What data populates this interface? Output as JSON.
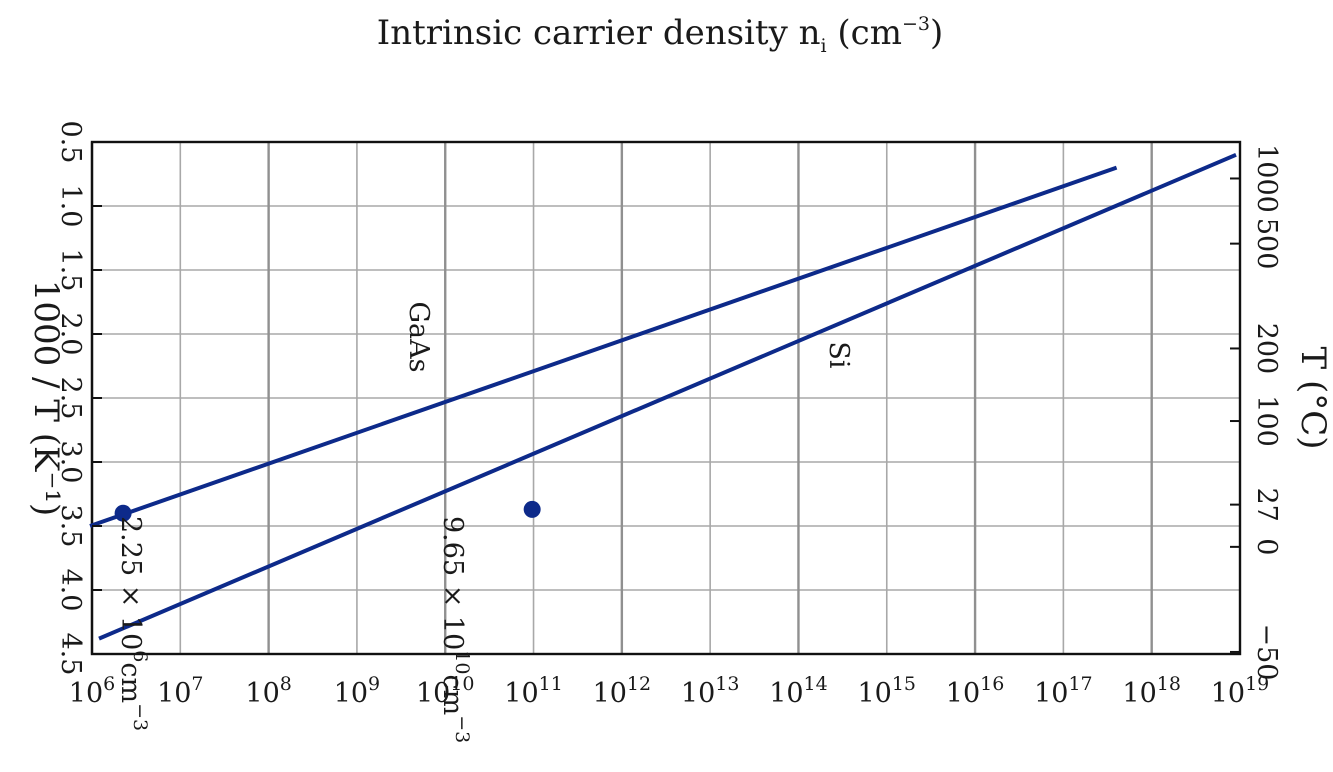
{
  "chart_data": {
    "type": "line",
    "title": "Intrinsic carrier density n_i (cm^-3)",
    "title_parts": {
      "text": "Intrinsic carrier density n",
      "sub": "i",
      "unit_open": " (cm",
      "unit_sup": "−3",
      "unit_close": ")"
    },
    "xlabel": "1000 / T (K⁻¹)",
    "ylabel": "Intrinsic carrier density n_i (cm^-3)",
    "secondary_axis_label": "T (°C)",
    "x_scale": "linear",
    "y_scale": "log",
    "xlim": [
      0.5,
      4.5
    ],
    "ylim": [
      1000000.0,
      1e+19
    ],
    "x_ticks": [
      "0.5",
      "1.0",
      "1.5",
      "2.0",
      "2.5",
      "3.0",
      "3.5",
      "4.0",
      "4.5"
    ],
    "x_tick_values": [
      0.5,
      1.0,
      1.5,
      2.0,
      2.5,
      3.0,
      3.5,
      4.0,
      4.5
    ],
    "y_tick_base": "10",
    "y_tick_exponents": [
      "6",
      "7",
      "8",
      "9",
      "10",
      "11",
      "12",
      "13",
      "14",
      "15",
      "16",
      "17",
      "18",
      "19"
    ],
    "temperature_ticks": [
      {
        "label": "1000",
        "x": 0.785
      },
      {
        "label": "500",
        "x": 1.294
      },
      {
        "label": "200",
        "x": 2.113
      },
      {
        "label": "100",
        "x": 2.68
      },
      {
        "label": "27",
        "x": 3.333
      },
      {
        "label": "0",
        "x": 3.663
      },
      {
        "label": "−50",
        "x": 4.484
      }
    ],
    "grid": true,
    "series": [
      {
        "name": "GaAs",
        "color": "#0d2a8a",
        "x": [
          0.7,
          3.5
        ],
        "y": [
          4e+17,
          950000.0
        ]
      },
      {
        "name": "Si",
        "color": "#0d2a8a",
        "x": [
          0.6,
          4.38
        ],
        "y": [
          9e+18,
          1200000.0
        ]
      }
    ],
    "points": [
      {
        "series": "GaAs",
        "x": 3.4,
        "y": 2250000.0,
        "label": {
          "mant": "2.25 × 10",
          "exp": "6",
          "unit": "cm",
          "unit_exp": "−3"
        }
      },
      {
        "series": "Si",
        "x": 3.37,
        "y": 96500000000.0,
        "label": {
          "mant": "9.65 × 10",
          "exp": "10",
          "unit": "cm",
          "unit_exp": "−3"
        }
      }
    ],
    "rotation": "rotated 90° clockwise (figure shown sideways)"
  }
}
